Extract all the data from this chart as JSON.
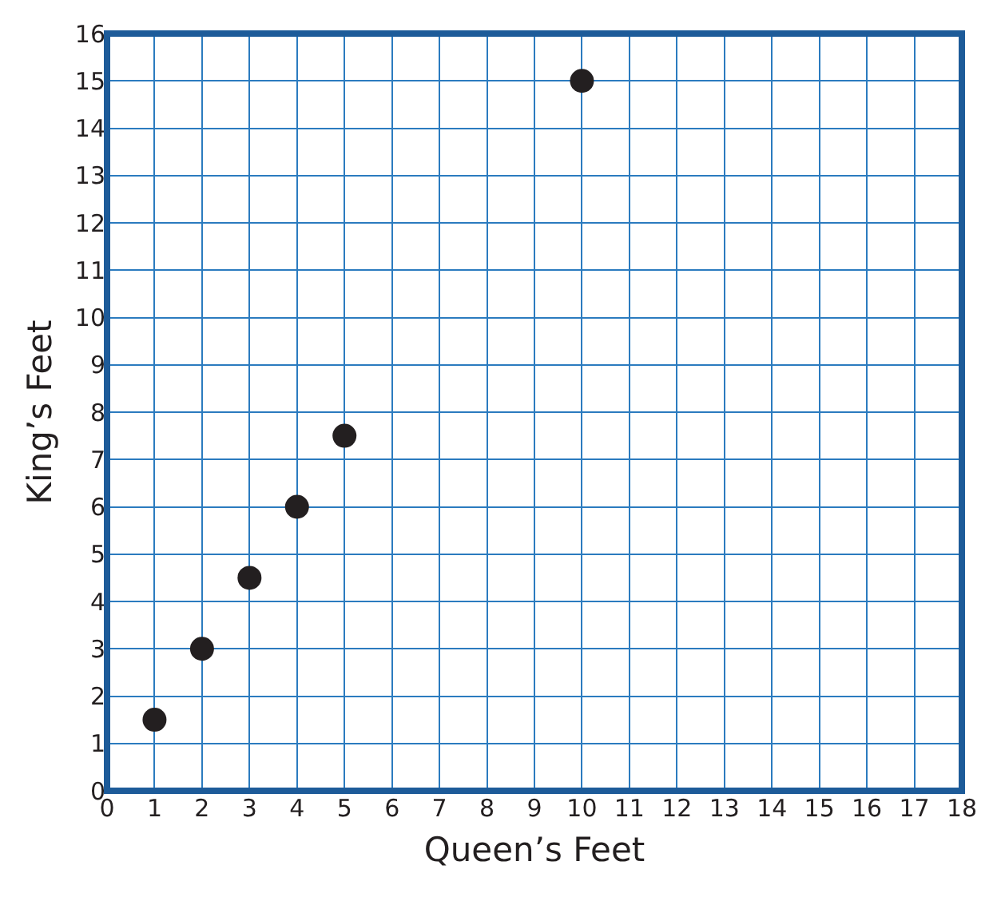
{
  "chart_data": {
    "type": "scatter",
    "xlabel": "Queen’s Feet",
    "ylabel": "King’s Feet",
    "x": [
      1,
      2,
      3,
      4,
      5,
      10
    ],
    "values": [
      1.5,
      3,
      4.5,
      6,
      7.5,
      15
    ],
    "color": "#231f20",
    "marker": "circle",
    "xlim": [
      0,
      18
    ],
    "ylim": [
      0,
      16
    ],
    "xticks": [
      0,
      1,
      2,
      3,
      4,
      5,
      6,
      7,
      8,
      9,
      10,
      11,
      12,
      13,
      14,
      15,
      16,
      17,
      18
    ],
    "yticks": [
      0,
      1,
      2,
      3,
      4,
      5,
      6,
      7,
      8,
      9,
      10,
      11,
      12,
      13,
      14,
      15,
      16
    ],
    "grid": true
  }
}
